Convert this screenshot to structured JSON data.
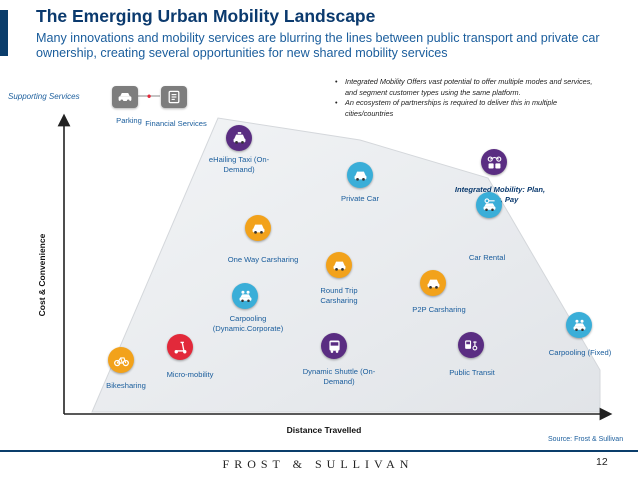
{
  "header": {
    "title": "The Emerging Urban Mobility Landscape",
    "subtitle": "Many innovations and mobility services are blurring the lines between public transport and private car ownership, creating several opportunities for new shared mobility services"
  },
  "supporting_services": {
    "label": "Supporting Services",
    "items": [
      {
        "label": "Parking",
        "icon": "parking-car-icon"
      },
      {
        "label": "Financial Services",
        "icon": "financial-services-icon"
      }
    ]
  },
  "insights": [
    "Integrated Mobility Offers vast potential to offer multiple modes and services, and segment customer types using the same platform.",
    "An ecosystem of partnerships is required to deliver this in multiple cities/countries"
  ],
  "axes": {
    "y_label": "Cost & Convenience",
    "x_label": "Distance Travelled"
  },
  "services": [
    {
      "id": "ehailing-taxi",
      "label": "eHailing Taxi (On-Demand)",
      "color": "#5a2d82",
      "icon": "taxi-icon"
    },
    {
      "id": "private-car",
      "label": "Private Car",
      "color": "#3aaed8",
      "icon": "car-icon"
    },
    {
      "id": "integrated-mobility",
      "label": "Integrated Mobility: Plan, Book, Pay",
      "color": "#5a2d82",
      "icon": "multimodal-icon"
    },
    {
      "id": "one-way-carsharing",
      "label": "One Way Carsharing",
      "color": "#f2a21b",
      "icon": "car-icon"
    },
    {
      "id": "car-rental",
      "label": "Car Rental",
      "color": "#3aaed8",
      "icon": "rental-car-icon"
    },
    {
      "id": "round-trip-carsharing",
      "label": "Round Trip Carsharing",
      "color": "#f2a21b",
      "icon": "car-icon"
    },
    {
      "id": "carpooling-dynamic",
      "label": "Carpooling (Dynamic.Corporate)",
      "color": "#3aaed8",
      "icon": "carpool-icon"
    },
    {
      "id": "p2p-carsharing",
      "label": "P2P Carsharing",
      "color": "#f2a21b",
      "icon": "car-icon"
    },
    {
      "id": "micro-mobility",
      "label": "Micro-mobility",
      "color": "#e2293a",
      "icon": "scooter-icon"
    },
    {
      "id": "dynamic-shuttle",
      "label": "Dynamic Shuttle (On-Demand)",
      "color": "#5a2d82",
      "icon": "shuttle-icon"
    },
    {
      "id": "public-transit",
      "label": "Public Transit",
      "color": "#5a2d82",
      "icon": "transit-icon"
    },
    {
      "id": "carpooling-fixed",
      "label": "Carpooling (Fixed)",
      "color": "#3aaed8",
      "icon": "carpool-icon"
    },
    {
      "id": "bikesharing",
      "label": "Bikesharing",
      "color": "#f2a21b",
      "icon": "bicycle-icon"
    }
  ],
  "footer": {
    "source": "Source: Frost & Sullivan",
    "logo": "FROST & SULLIVAN",
    "page_number": "12"
  }
}
